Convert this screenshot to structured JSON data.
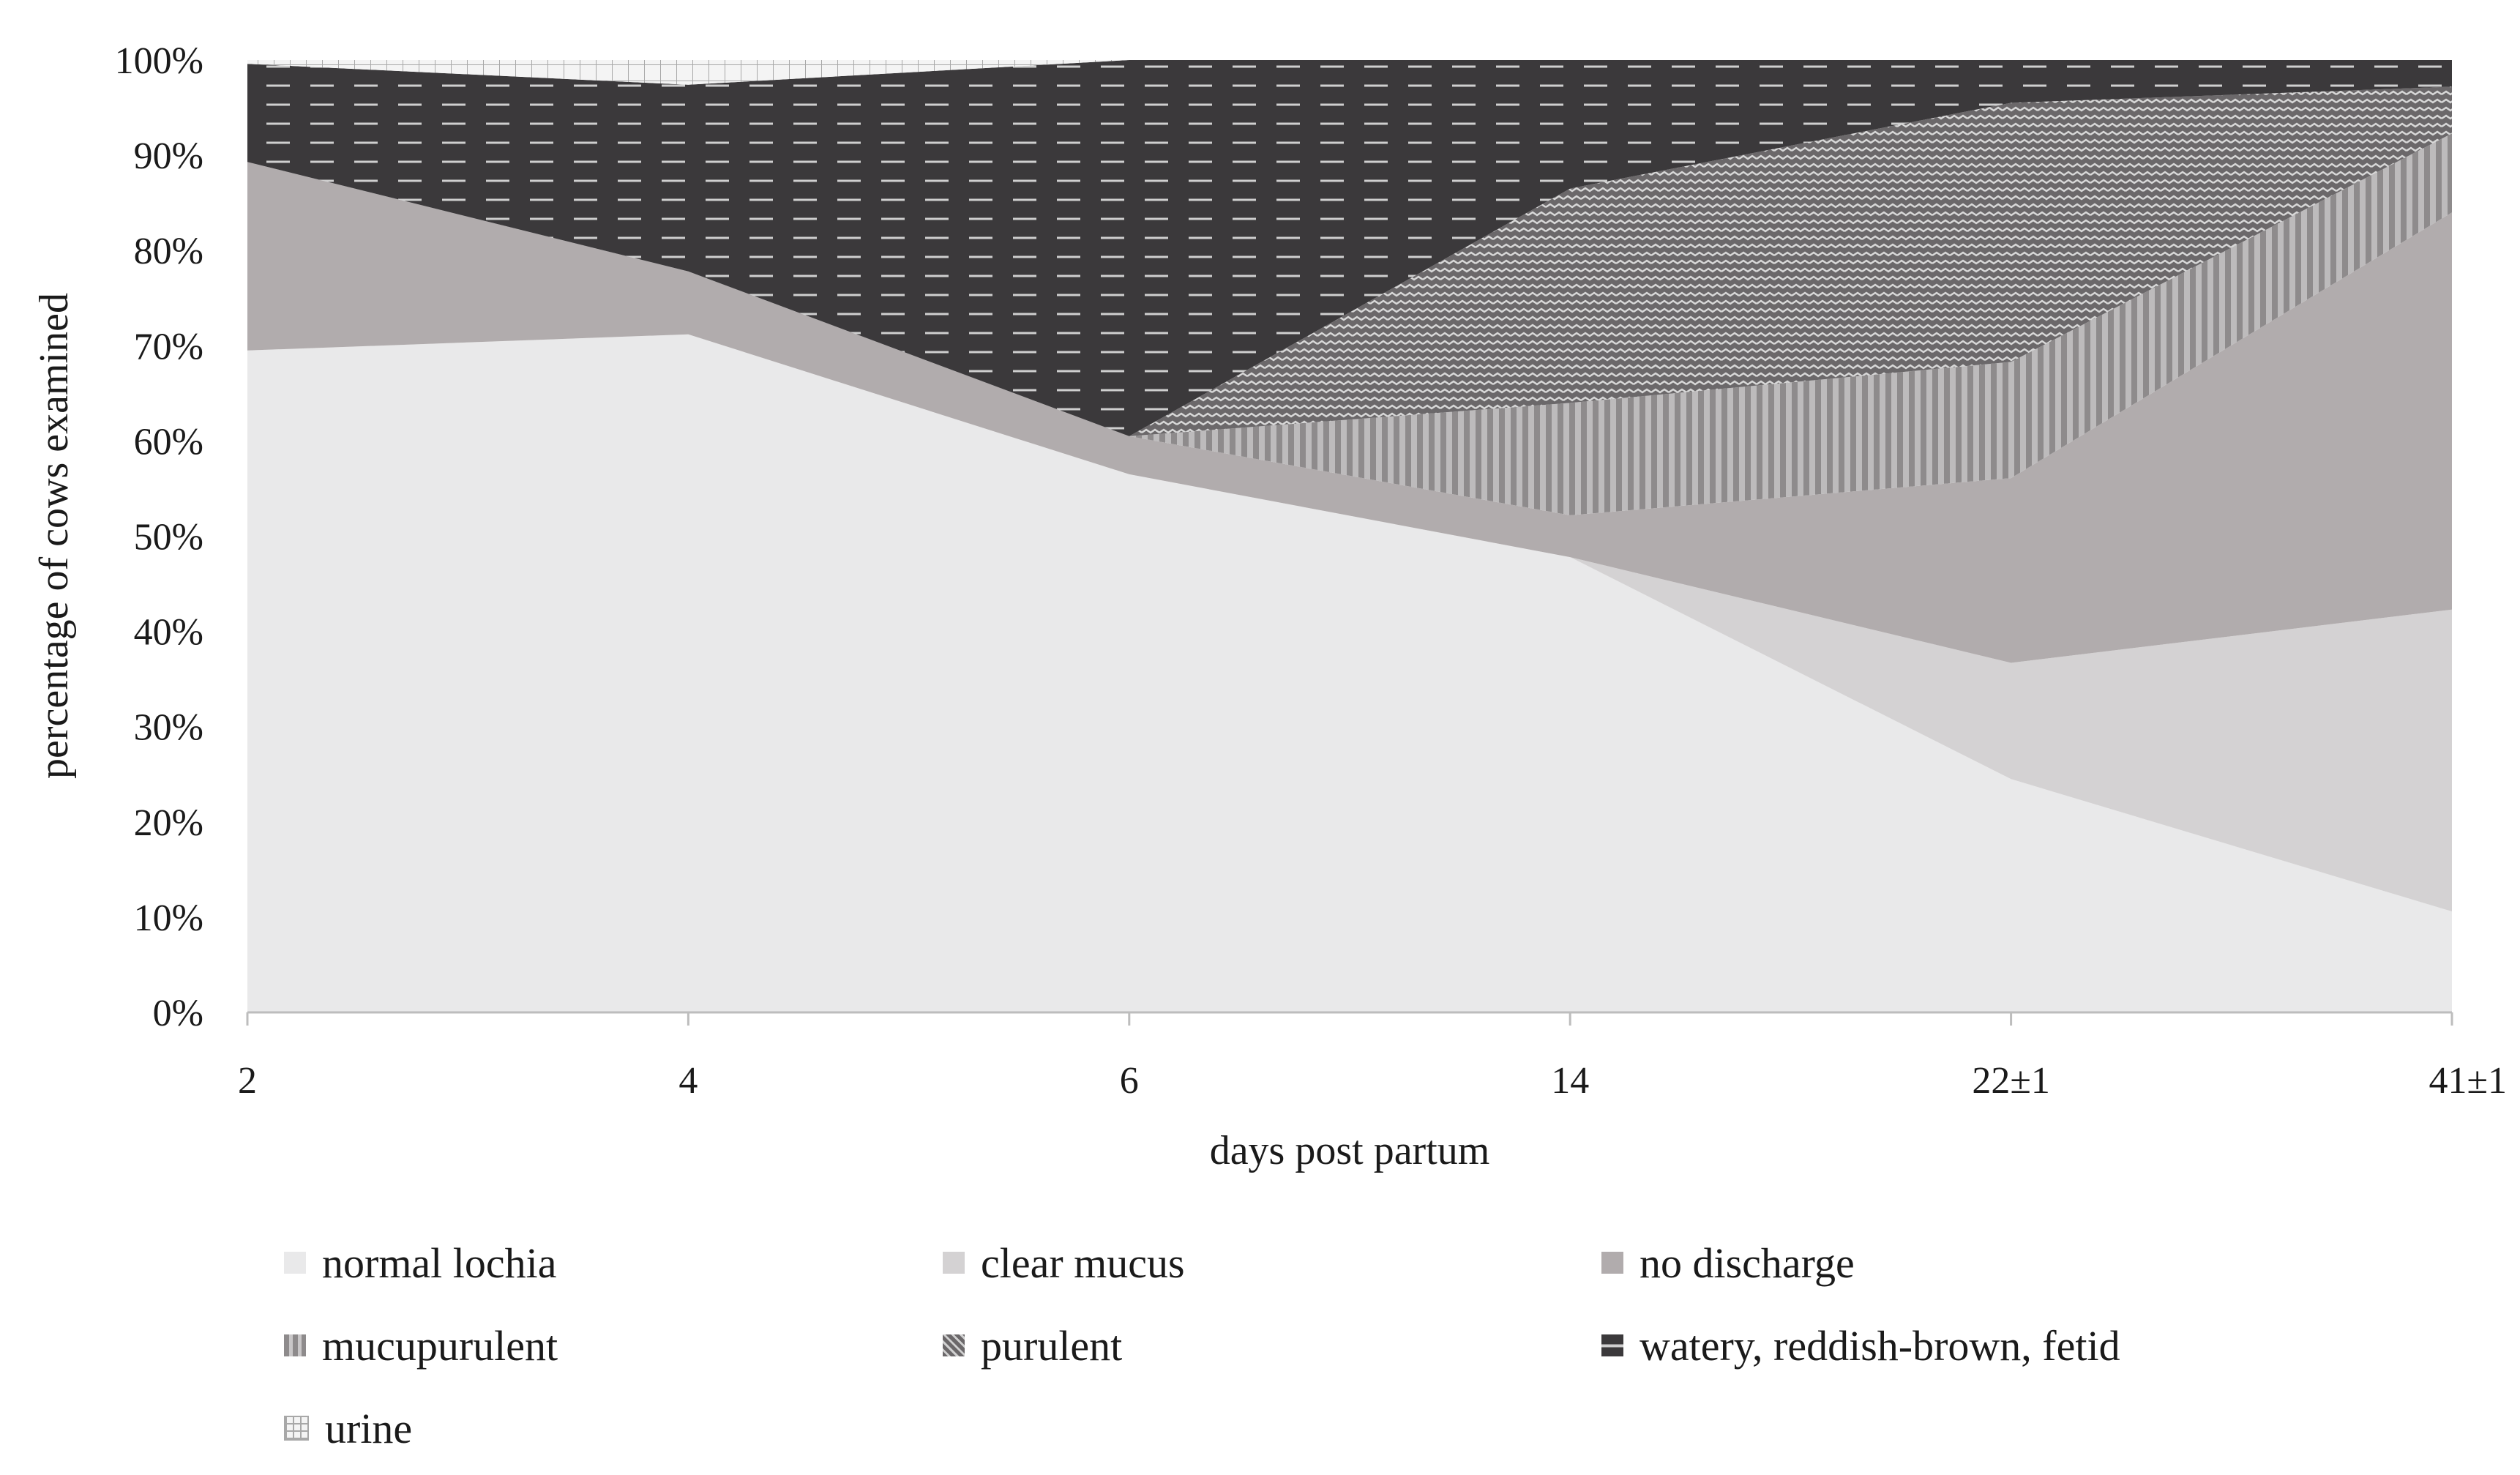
{
  "chart_data": {
    "type": "area",
    "stacked": "percent",
    "title": "",
    "xlabel": "days post partum",
    "ylabel": "percentage of cows examined",
    "categories": [
      "2",
      "4",
      "6",
      "14",
      "22±1",
      "41±1"
    ],
    "ylim": [
      0,
      100
    ],
    "yticks": [
      "0%",
      "10%",
      "20%",
      "30%",
      "40%",
      "50%",
      "60%",
      "70%",
      "80%",
      "90%",
      "100%"
    ],
    "grid": false,
    "legend_position": "bottom",
    "series": [
      {
        "name": "normal lochia",
        "values": [
          69.5,
          71.2,
          56.5,
          47.8,
          24.5,
          10.6
        ],
        "color": "#e9e9ea",
        "pattern": "solid"
      },
      {
        "name": "clear mucus",
        "values": [
          0,
          0,
          0,
          0,
          12.2,
          31.7
        ],
        "color": "#d4d2d3",
        "pattern": "solid"
      },
      {
        "name": "no discharge",
        "values": [
          19.8,
          6.6,
          4.0,
          4.4,
          19.4,
          41.7
        ],
        "color": "#b1acad",
        "pattern": "solid"
      },
      {
        "name": "mucupurulent",
        "values": [
          0,
          0,
          0,
          11.8,
          12.2,
          8.3
        ],
        "color": "#8e8b8c",
        "pattern": "vertical-stripes"
      },
      {
        "name": "purulent",
        "values": [
          0,
          0,
          0,
          22.5,
          27.2,
          4.9
        ],
        "color": "#6b686a",
        "pattern": "zigzag"
      },
      {
        "name": "watery, reddish-brown, fetid",
        "values": [
          10.3,
          19.6,
          39.5,
          13.5,
          4.5,
          2.8
        ],
        "color": "#3b393b",
        "pattern": "dashes"
      },
      {
        "name": "urine",
        "values": [
          0.4,
          2.6,
          0,
          0,
          0,
          0
        ],
        "color": "#f2f2f2",
        "pattern": "grid"
      }
    ]
  }
}
